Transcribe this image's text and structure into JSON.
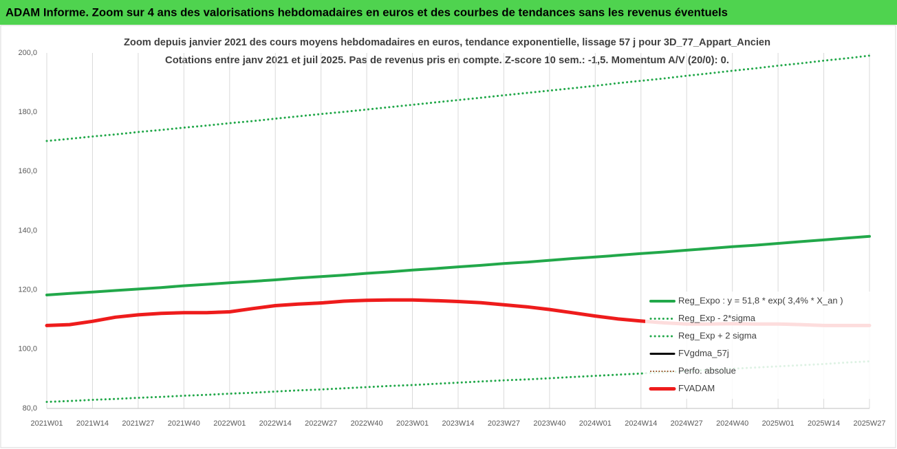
{
  "banner": "ADAM Informe. Zoom sur 4 ans des valorisations hebdomadaires en euros et des courbes de tendances sans les revenus éventuels",
  "chart_data": {
    "type": "line",
    "title": "Zoom depuis janvier 2021 des cours moyens hebdomadaires en euros, tendance exponentielle, lissage 57 j pour 3D_77_Appart_Ancien",
    "subtitle": "Cotations entre janv 2021 et juil 2025. Pas de revenus pris en compte. Z-score 10 sem.: -1,5. Momentum A/V (20/0): 0.",
    "categories": [
      "2021W01",
      null,
      "2021W14",
      null,
      "2021W27",
      null,
      "2021W40",
      null,
      "2022W01",
      null,
      "2022W14",
      null,
      "2022W27",
      null,
      "2022W40",
      null,
      "2023W01",
      null,
      "2023W14",
      null,
      "2023W27",
      null,
      "2023W40",
      null,
      "2024W01",
      null,
      "2024W14",
      null,
      "2024W27",
      null,
      "2024W40",
      null,
      "2025W01",
      null,
      "2025W14",
      null,
      "2025W27"
    ],
    "ylim": [
      80,
      200
    ],
    "yticks": [
      {
        "value": 80,
        "label": "80,0"
      },
      {
        "value": 100,
        "label": "100,0"
      },
      {
        "value": 120,
        "label": "120,0"
      },
      {
        "value": 140,
        "label": "140,0"
      },
      {
        "value": 160,
        "label": "160,0"
      },
      {
        "value": 180,
        "label": "180,0"
      },
      {
        "value": 200,
        "label": "200,0"
      }
    ],
    "grid": "x",
    "legend": "right",
    "series": [
      {
        "name": "Reg_Expo : y = 51,8 * exp( 3,4% *  X_an )",
        "color": "#22a84a",
        "style": "solid",
        "width": 4,
        "values": [
          118.3,
          118.8,
          119.3,
          119.8,
          120.3,
          120.8,
          121.4,
          121.9,
          122.4,
          122.9,
          123.4,
          124.0,
          124.5,
          125.0,
          125.6,
          126.1,
          126.7,
          127.2,
          127.8,
          128.3,
          128.9,
          129.4,
          130.0,
          130.6,
          131.1,
          131.7,
          132.3,
          132.8,
          133.4,
          134.0,
          134.6,
          135.1,
          135.7,
          136.3,
          136.9,
          137.5,
          138.1
        ]
      },
      {
        "name": "Reg_Exp - 2*sigma",
        "color": "#22a84a",
        "style": "dotted",
        "width": 3,
        "values": [
          82.2,
          82.5,
          82.9,
          83.2,
          83.6,
          83.9,
          84.3,
          84.6,
          85.0,
          85.3,
          85.7,
          86.1,
          86.4,
          86.8,
          87.2,
          87.6,
          87.9,
          88.3,
          88.7,
          89.1,
          89.5,
          89.8,
          90.2,
          90.6,
          91.0,
          91.4,
          91.8,
          92.2,
          92.6,
          93.0,
          93.4,
          93.8,
          94.2,
          94.6,
          95.0,
          95.5,
          95.9
        ]
      },
      {
        "name": "Reg_Exp + 2 sigma",
        "color": "#22a84a",
        "style": "dotted",
        "width": 3,
        "values": [
          170.3,
          171.0,
          171.8,
          172.5,
          173.3,
          174.0,
          174.8,
          175.5,
          176.3,
          177.0,
          177.8,
          178.6,
          179.4,
          180.1,
          180.9,
          181.7,
          182.5,
          183.3,
          184.1,
          184.9,
          185.7,
          186.5,
          187.3,
          188.1,
          188.9,
          189.8,
          190.6,
          191.4,
          192.3,
          193.1,
          194.0,
          194.8,
          195.7,
          196.5,
          197.4,
          198.2,
          199.1
        ]
      },
      {
        "name": "FVgdma_57j",
        "color": "#000000",
        "style": "solid",
        "width": 3,
        "values": [
          108.1,
          108.4,
          109.4,
          110.9,
          111.7,
          112.2,
          112.4,
          112.5,
          112.8,
          113.8,
          114.8,
          115.3,
          115.8,
          116.3,
          116.6,
          116.7,
          116.6,
          116.4,
          116.0,
          115.6,
          114.9,
          114.2,
          113.3,
          112.2,
          111.1,
          110.1,
          109.4,
          108.9,
          108.7,
          108.6,
          108.6,
          108.5,
          108.4,
          108.2,
          108.0,
          108.0,
          108.0
        ]
      },
      {
        "name": "Perfo. absolue",
        "color": "#8b4513",
        "style": "dotted",
        "width": 2,
        "values": [
          108.0,
          108.3,
          109.4,
          110.8,
          111.6,
          112.1,
          112.3,
          112.3,
          112.6,
          113.7,
          114.7,
          115.2,
          115.6,
          116.2,
          116.5,
          116.6,
          116.6,
          116.4,
          116.1,
          115.7,
          115.0,
          114.3,
          113.4,
          112.3,
          111.2,
          110.2,
          109.5,
          108.9,
          108.5,
          108.5,
          108.6,
          108.5,
          108.5,
          108.3,
          108.0,
          108.0,
          108.0
        ]
      },
      {
        "name": "FVADAM",
        "color": "#ee1c1c",
        "style": "solid",
        "width": 5,
        "values": [
          108.0,
          108.3,
          109.4,
          110.8,
          111.6,
          112.1,
          112.3,
          112.3,
          112.6,
          113.7,
          114.7,
          115.2,
          115.6,
          116.2,
          116.5,
          116.6,
          116.6,
          116.4,
          116.1,
          115.7,
          115.0,
          114.3,
          113.4,
          112.3,
          111.2,
          110.2,
          109.5,
          108.9,
          108.5,
          108.5,
          108.6,
          108.5,
          108.5,
          108.3,
          108.0,
          108.0,
          108.0
        ]
      }
    ]
  }
}
